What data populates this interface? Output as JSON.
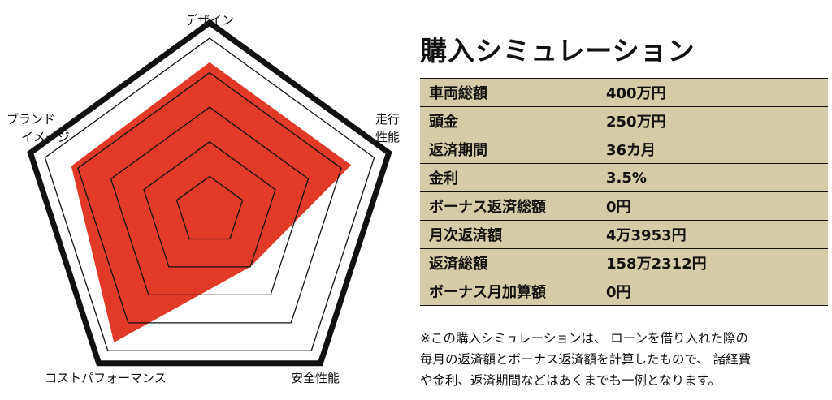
{
  "chart_data": {
    "type": "radar",
    "axes": [
      "デザイン",
      "走行性能",
      "安全性能",
      "コストパフォーマンス",
      "ブランドイメージ"
    ],
    "axis_label_lines": [
      [
        "デザイン"
      ],
      [
        "走行",
        "性能"
      ],
      [
        "安全性能"
      ],
      [
        "コストパフォーマンス"
      ],
      [
        "ブランド",
        "イメージ"
      ]
    ],
    "max": 5,
    "gridlines": [
      1,
      2,
      3,
      4
    ],
    "values": [
      4.3,
      4.3,
      2.0,
      4.7,
      4.2
    ],
    "colors": {
      "fill": "#e23a26",
      "outline": "#111111",
      "grid": "#111111"
    }
  },
  "simulation": {
    "title": "購入シミュレーション",
    "rows": [
      {
        "label": "車両総額",
        "value": "400万円"
      },
      {
        "label": "頭金",
        "value": "250万円"
      },
      {
        "label": "返済期間",
        "value": "36カ月"
      },
      {
        "label": "金利",
        "value": "3.5%"
      },
      {
        "label": "ボーナス返済総額",
        "value": "0円"
      },
      {
        "label": "月次返済額",
        "value": "4万3953円"
      },
      {
        "label": "返済総額",
        "value": "158万2312円"
      },
      {
        "label": "ボーナス月加算額",
        "value": "0円"
      }
    ],
    "table_color": "#d5cba8",
    "note_lines": [
      "※この購入シミュレーションは、 ローンを借り入れた際の",
      "毎月の返済額とボーナス返済額を計算したもので、 諸経費",
      "や金利、返済期間などはあくまでも一例となります。"
    ]
  }
}
